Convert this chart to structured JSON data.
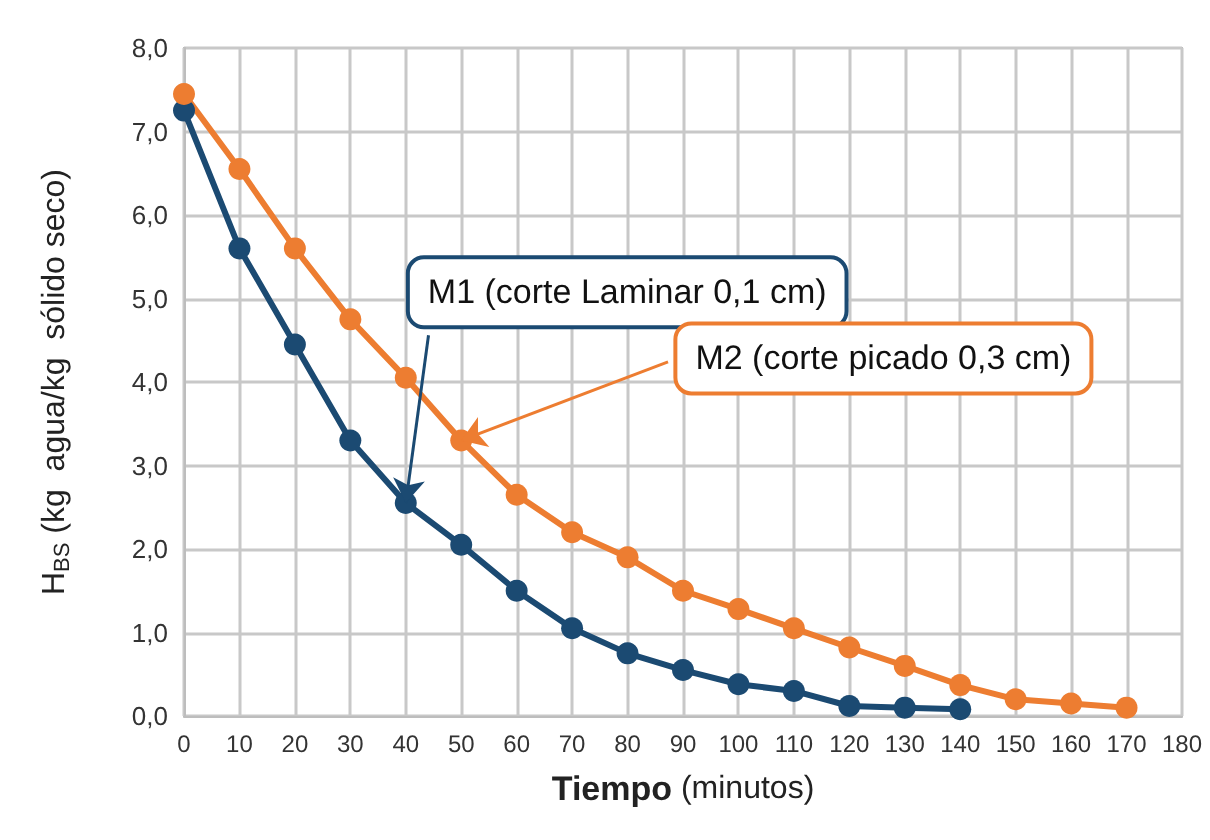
{
  "chart_data": {
    "type": "line",
    "xlabel": "Tiempo (minutos)",
    "ylabel": "H$_{BS}$ (kg  agua/kg  sólido seco)",
    "x": [
      0,
      10,
      20,
      30,
      40,
      50,
      60,
      70,
      80,
      90,
      100,
      110,
      120,
      130,
      140,
      150,
      160,
      170
    ],
    "series": [
      {
        "color": "#1b4a72",
        "x": [
          0,
          10,
          20,
          30,
          40,
          50,
          60,
          70,
          80,
          90,
          100,
          110,
          120,
          130,
          140
        ],
        "values": [
          7.25,
          5.6,
          4.45,
          3.3,
          2.55,
          2.05,
          1.5,
          1.05,
          0.75,
          0.55,
          0.38,
          0.3,
          0.12,
          0.1,
          0.08
        ]
      },
      {
        "color": "#ed7d31",
        "values": [
          7.45,
          6.55,
          5.6,
          4.75,
          4.05,
          3.3,
          2.65,
          2.2,
          1.9,
          1.5,
          1.28,
          1.05,
          0.82,
          0.6,
          0.37,
          0.2,
          0.15,
          0.1
        ]
      }
    ],
    "annotations": [
      {
        "text": "M1 (corte Laminar 0,1 cm)",
        "x": 40,
        "y": 2.55
      },
      {
        "text": "M2 (corte picado 0,3 cm)",
        "x": 50,
        "y": 3.3
      }
    ],
    "xlim": [
      0,
      180
    ],
    "xticks": [
      0,
      10,
      20,
      30,
      40,
      50,
      60,
      70,
      80,
      90,
      100,
      110,
      120,
      130,
      140,
      150,
      160,
      170,
      180
    ],
    "ylim": [
      0,
      8
    ],
    "yticks": [
      {
        "value": 0,
        "label": "0,0"
      },
      {
        "value": 1,
        "label": "1,0"
      },
      {
        "value": 2,
        "label": "2,0"
      },
      {
        "value": 3,
        "label": "3,0"
      },
      {
        "value": 4,
        "label": "4,0"
      },
      {
        "value": 5,
        "label": "5,0"
      },
      {
        "value": 6,
        "label": "6,0"
      },
      {
        "value": 7,
        "label": "7,0"
      },
      {
        "value": 8,
        "label": "8,0"
      }
    ],
    "grid": true,
    "marker": "circle",
    "line_style": "solid"
  }
}
